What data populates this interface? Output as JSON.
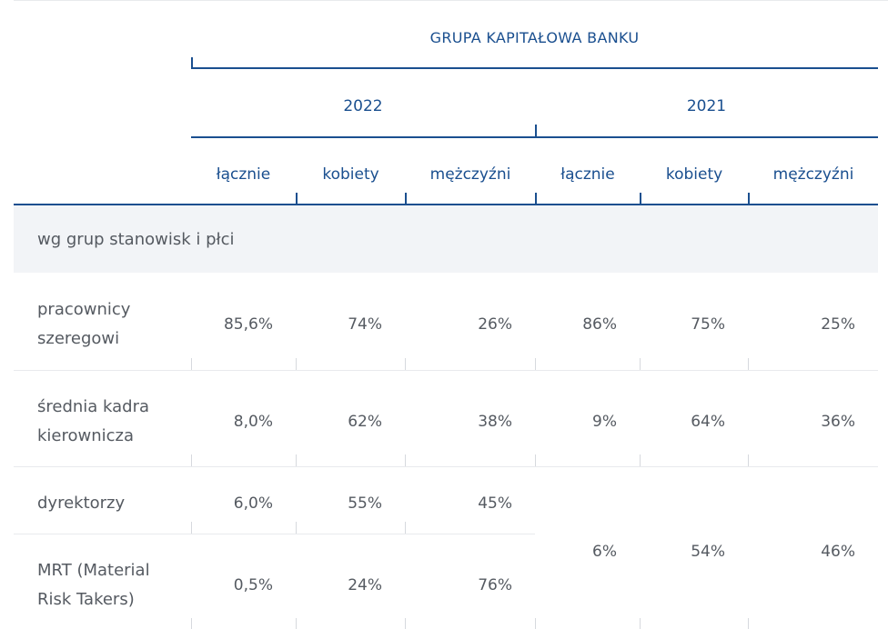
{
  "header": {
    "group_title": "GRUPA KAPITAŁOWA BANKU",
    "years": [
      "2022",
      "2021"
    ],
    "columns": [
      "łącznie",
      "kobiety",
      "mężczyźni",
      "łącznie",
      "kobiety",
      "mężczyźni"
    ]
  },
  "section_title": "wg grup stanowisk i płci",
  "rows": [
    {
      "label": "pracownicy szeregowi",
      "values": [
        "85,6%",
        "74%",
        "26%",
        "86%",
        "75%",
        "25%"
      ]
    },
    {
      "label": "średnia kadra kierownicza",
      "values": [
        "8,0%",
        "62%",
        "38%",
        "9%",
        "64%",
        "36%"
      ]
    },
    {
      "label": "dyrektorzy",
      "values": [
        "6,0%",
        "55%",
        "45%"
      ]
    },
    {
      "label": "MRT (Material Risk Takers)",
      "values": [
        "0,5%",
        "24%",
        "76%"
      ]
    }
  ],
  "merged_2021": [
    "6%",
    "54%",
    "46%"
  ],
  "colors": {
    "accent": "#1a4f8f",
    "text": "#555a61",
    "section_bg": "#f2f4f7"
  }
}
